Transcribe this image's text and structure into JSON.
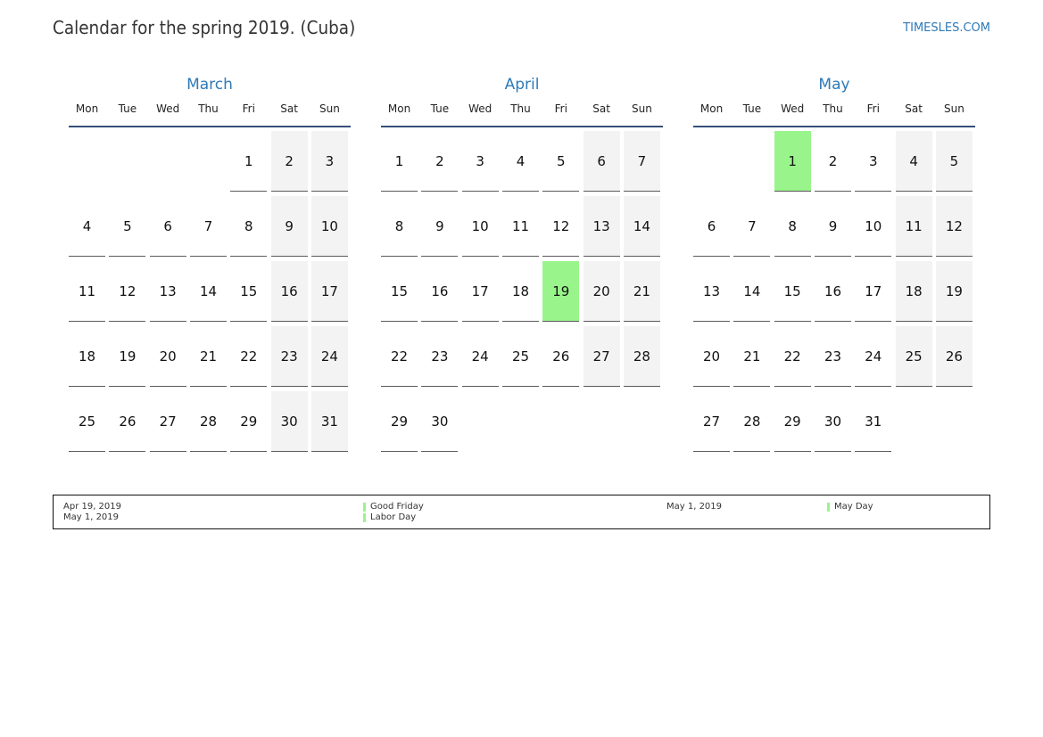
{
  "header": {
    "title": "Calendar for the spring 2019. (Cuba)",
    "site": "TIMESLES.COM"
  },
  "weekdays": [
    "Mon",
    "Tue",
    "Wed",
    "Thu",
    "Fri",
    "Sat",
    "Sun"
  ],
  "months": [
    {
      "name": "March",
      "start_weekday": 5,
      "days": [
        "1",
        "2",
        "3",
        "4",
        "5",
        "6",
        "7",
        "8",
        "9",
        "10",
        "11",
        "12",
        "13",
        "14",
        "15",
        "16",
        "17",
        "18",
        "19",
        "20",
        "21",
        "22",
        "23",
        "24",
        "25",
        "26",
        "27",
        "28",
        "29",
        "30",
        "31"
      ],
      "holidays": []
    },
    {
      "name": "April",
      "start_weekday": 1,
      "days": [
        "1",
        "2",
        "3",
        "4",
        "5",
        "6",
        "7",
        "8",
        "9",
        "10",
        "11",
        "12",
        "13",
        "14",
        "15",
        "16",
        "17",
        "18",
        "19",
        "20",
        "21",
        "22",
        "23",
        "24",
        "25",
        "26",
        "27",
        "28",
        "29",
        "30"
      ],
      "holidays": [
        19
      ]
    },
    {
      "name": "May",
      "start_weekday": 3,
      "days": [
        "1",
        "2",
        "3",
        "4",
        "5",
        "6",
        "7",
        "8",
        "9",
        "10",
        "11",
        "12",
        "13",
        "14",
        "15",
        "16",
        "17",
        "18",
        "19",
        "20",
        "21",
        "22",
        "23",
        "24",
        "25",
        "26",
        "27",
        "28",
        "29",
        "30",
        "31"
      ],
      "holidays": [
        1
      ]
    }
  ],
  "legend": {
    "dates": [
      "Apr 19, 2019",
      "May 1, 2019"
    ],
    "names": [
      "Good Friday",
      "Labor Day"
    ],
    "dates_col3": [
      "May 1, 2019"
    ],
    "names_col4": [
      "May Day"
    ]
  },
  "colors": {
    "accent": "#2e7ab8",
    "holiday": "#99f58b",
    "weekend": "#f3f3f3",
    "rule": "#37507a"
  }
}
